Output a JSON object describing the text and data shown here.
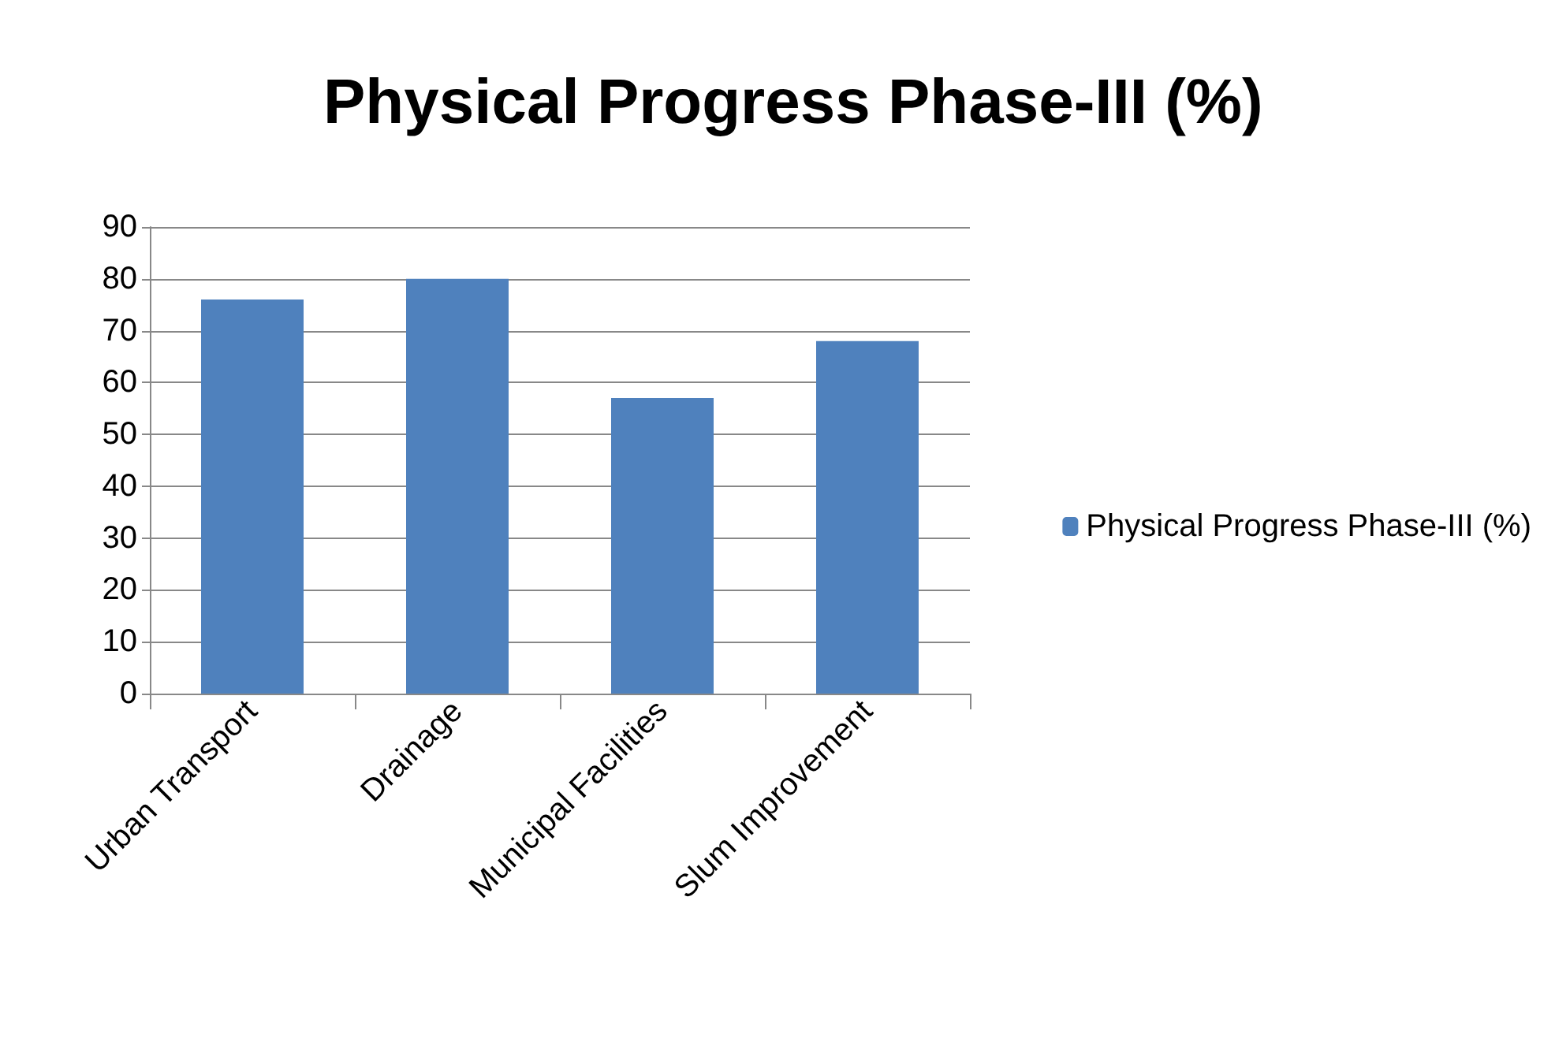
{
  "chart_data": {
    "type": "bar",
    "title": "Physical Progress Phase-III (%)",
    "categories": [
      "Urban Transport",
      "Drainage",
      "Municipal Facilities",
      "Slum Improvement"
    ],
    "series": [
      {
        "name": "Physical Progress Phase-III (%)",
        "color": "#4f81bd",
        "values": [
          76,
          80,
          57,
          68
        ]
      }
    ],
    "ylim": [
      0,
      90
    ],
    "yticks": [
      0,
      10,
      20,
      30,
      40,
      50,
      60,
      70,
      80,
      90
    ],
    "grid": "y",
    "legend": "right"
  }
}
